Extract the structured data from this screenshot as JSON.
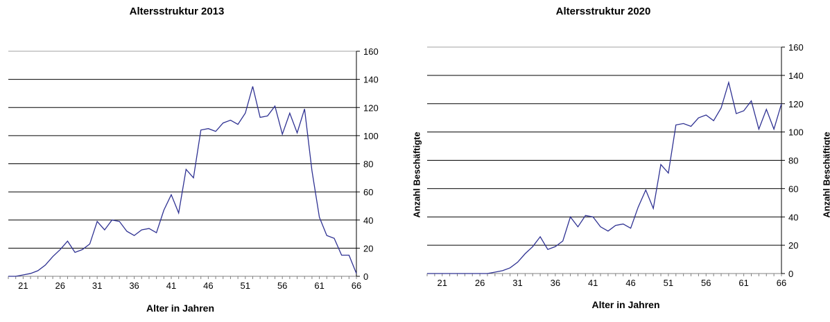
{
  "chart_data": [
    {
      "type": "line",
      "title": "Altersstruktur 2013",
      "xlabel": "Alter in Jahren",
      "ylabel": "",
      "ylim": [
        0,
        160
      ],
      "xlim": [
        19,
        66
      ],
      "x_ticks": [
        21,
        26,
        31,
        36,
        41,
        46,
        51,
        56,
        61,
        66
      ],
      "y_ticks": [
        0,
        20,
        40,
        60,
        80,
        100,
        120,
        140,
        160
      ],
      "y_axis_side": "right",
      "grid": true,
      "color": "#2e3192",
      "x": [
        19,
        20,
        21,
        22,
        23,
        24,
        25,
        26,
        27,
        28,
        29,
        30,
        31,
        32,
        33,
        34,
        35,
        36,
        37,
        38,
        39,
        40,
        41,
        42,
        43,
        44,
        45,
        46,
        47,
        48,
        49,
        50,
        51,
        52,
        53,
        54,
        55,
        56,
        57,
        58,
        59,
        60,
        61,
        62,
        63,
        64,
        65,
        66
      ],
      "values": [
        0,
        0,
        1,
        2,
        4,
        8,
        14,
        19,
        25,
        17,
        19,
        23,
        39,
        33,
        40,
        39,
        32,
        29,
        33,
        34,
        31,
        47,
        58,
        45,
        76,
        70,
        104,
        105,
        103,
        109,
        111,
        108,
        116,
        135,
        113,
        114,
        121,
        101,
        116,
        102,
        119,
        75,
        42,
        29,
        27,
        15,
        15,
        2
      ]
    },
    {
      "type": "line",
      "title": "Altersstruktur 2020",
      "xlabel": "Alter in Jahren",
      "ylabel": "Anzahl Beschäftigte",
      "ylim": [
        0,
        160
      ],
      "xlim": [
        19,
        66
      ],
      "x_ticks": [
        21,
        26,
        31,
        36,
        41,
        46,
        51,
        56,
        61,
        66
      ],
      "y_ticks": [
        0,
        20,
        40,
        60,
        80,
        100,
        120,
        140,
        160
      ],
      "y_axis_side": "right",
      "grid": true,
      "color": "#2e3192",
      "x": [
        19,
        20,
        21,
        22,
        23,
        24,
        25,
        26,
        27,
        28,
        29,
        30,
        31,
        32,
        33,
        34,
        35,
        36,
        37,
        38,
        39,
        40,
        41,
        42,
        43,
        44,
        45,
        46,
        47,
        48,
        49,
        50,
        51,
        52,
        53,
        54,
        55,
        56,
        57,
        58,
        59,
        60,
        61,
        62,
        63,
        64,
        65,
        66
      ],
      "values": [
        0,
        0,
        0,
        0,
        0,
        0,
        0,
        0,
        0,
        1,
        2,
        4,
        8,
        14,
        19,
        26,
        17,
        19,
        23,
        40,
        33,
        41,
        40,
        33,
        30,
        34,
        35,
        32,
        47,
        59,
        46,
        77,
        71,
        105,
        106,
        104,
        110,
        112,
        108,
        117,
        135,
        113,
        115,
        122,
        102,
        116,
        102,
        120
      ]
    }
  ]
}
